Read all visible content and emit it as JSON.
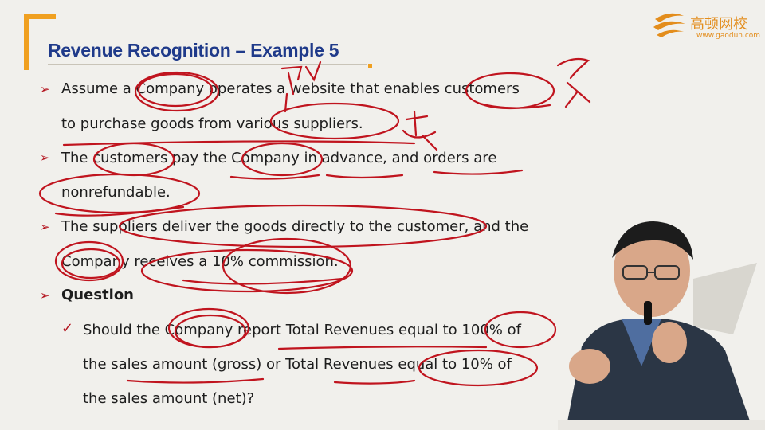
{
  "slide": {
    "title": "Revenue Recognition – Example 5",
    "logo": {
      "name_cn": "高顿网校",
      "url": "www.gaodun.com"
    },
    "bullets": [
      {
        "lines": [
          "Assume a Company operates a website that enables customers",
          "to purchase goods from various suppliers."
        ]
      },
      {
        "lines": [
          "The customers pay the Company in advance, and orders are",
          "nonrefundable."
        ]
      },
      {
        "lines": [
          "The suppliers deliver the goods directly to the customer, and the",
          "Company receives a 10% commission."
        ]
      },
      {
        "lines": [
          "Question"
        ]
      }
    ],
    "sub_bullets": [
      {
        "lines": [
          "Should the Company report Total Revenues equal to 100% of",
          "the sales amount (gross) or Total Revenues equal to 10% of",
          "the sales amount (net)?"
        ]
      }
    ],
    "colors": {
      "title": "#1f3a8a",
      "accent_orange": "#f0a020",
      "bullet_red": "#b3121d",
      "ink_red": "#c0141e",
      "background": "#f1f0ec"
    }
  }
}
